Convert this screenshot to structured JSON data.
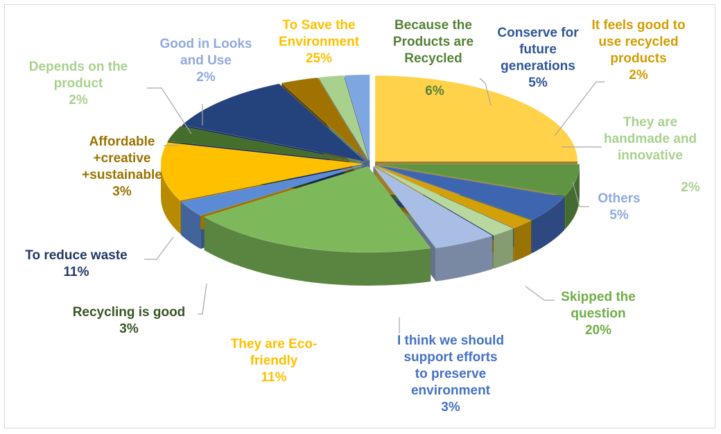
{
  "chart_data": {
    "type": "pie",
    "style": "3d-exploded-perspective",
    "title": "",
    "start_angle_deg": 270,
    "slices": [
      {
        "lines": [
          "To Save the",
          "Environment"
        ],
        "pct": "25%",
        "value": 25,
        "color": "#ffd24a",
        "label_color": "#ffc000"
      },
      {
        "lines": [
          "Because the",
          "Products are",
          "Recycled"
        ],
        "pct": "6%",
        "value": 6,
        "color": "#5f9442",
        "label_color": "#548235"
      },
      {
        "lines": [
          "Conserve for",
          "future",
          "generations"
        ],
        "pct": "5%",
        "value": 5,
        "color": "#3e65b0",
        "label_color": "#2f5597"
      },
      {
        "lines": [
          "It feels good to",
          "use recycled",
          "products"
        ],
        "pct": "2%",
        "value": 2,
        "color": "#d4a007",
        "label_color": "#d39c00"
      },
      {
        "lines": [
          "They are",
          "handmade and",
          "innovative"
        ],
        "pct": "2%",
        "value": 2,
        "color": "#b9d89f",
        "label_color": "#a9d18e"
      },
      {
        "lines": [
          "Others"
        ],
        "pct": "5%",
        "value": 5,
        "color": "#a8bee4",
        "label_color": "#8faadc"
      },
      {
        "lines": [
          "Skipped the",
          "question"
        ],
        "pct": "20%",
        "value": 20,
        "color": "#7db95a",
        "label_color": "#70ad47"
      },
      {
        "lines": [
          "I think we should",
          "support efforts",
          "to preserve",
          "environment"
        ],
        "pct": "3%",
        "value": 3,
        "color": "#5b8bd7",
        "label_color": "#4472c4"
      },
      {
        "lines": [
          "They are Eco-",
          "friendly"
        ],
        "pct": "11%",
        "value": 11,
        "color": "#ffc000",
        "label_color": "#ffc000"
      },
      {
        "lines": [
          "Recycling is good"
        ],
        "pct": "3%",
        "value": 3,
        "color": "#456e2c",
        "label_color": "#375623"
      },
      {
        "lines": [
          "To reduce waste"
        ],
        "pct": "11%",
        "value": 11,
        "color": "#24437c",
        "label_color": "#203864"
      },
      {
        "lines": [
          "Affordable",
          "+creative",
          "+sustainable"
        ],
        "pct": "3%",
        "value": 3,
        "color": "#a07200",
        "label_color": "#997300"
      },
      {
        "lines": [
          "Depends on the",
          "product"
        ],
        "pct": "2%",
        "value": 2,
        "color": "#a9d18e",
        "label_color": "#a9d18e"
      },
      {
        "lines": [
          "Good in Looks",
          "and Use"
        ],
        "pct": "2%",
        "value": 2,
        "color": "#7ea6e0",
        "label_color": "#8faadc"
      }
    ]
  }
}
